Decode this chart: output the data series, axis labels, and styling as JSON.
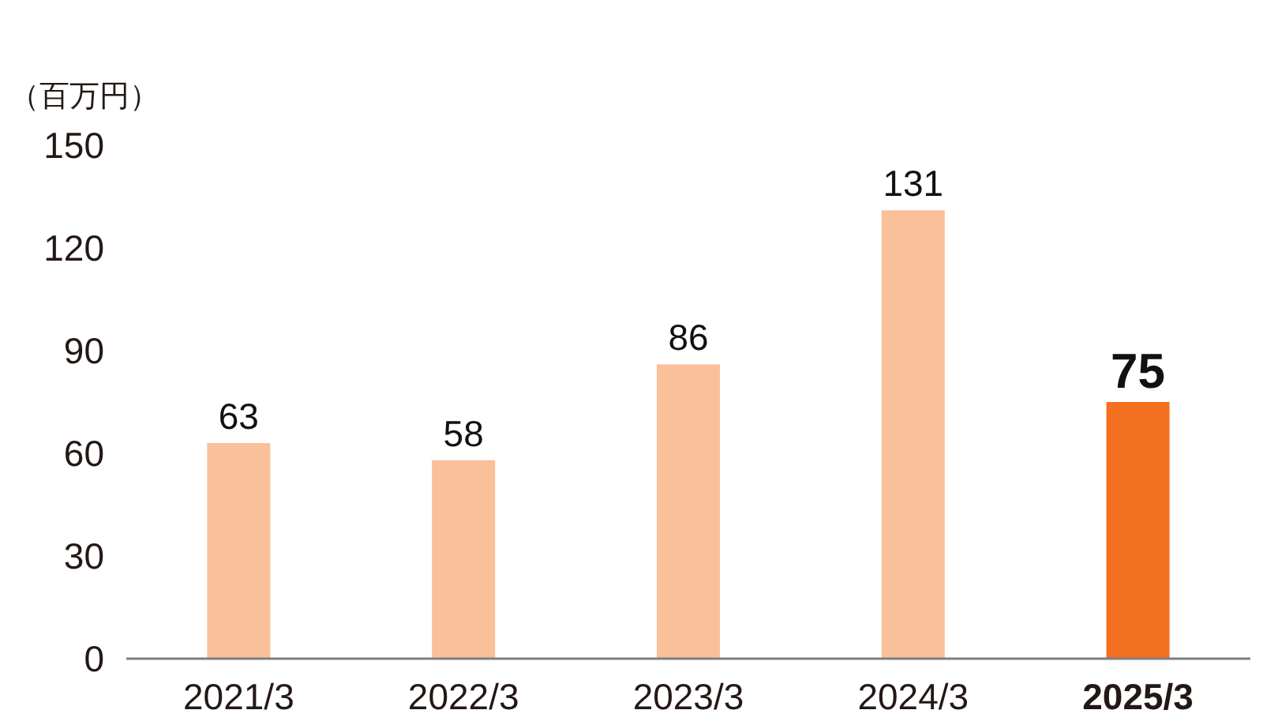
{
  "chart_data": {
    "type": "bar",
    "ylabel": "（百万円）",
    "categories": [
      "2021/3",
      "2022/3",
      "2023/3",
      "2024/3",
      "2025/3"
    ],
    "values": [
      63,
      58,
      86,
      131,
      75
    ],
    "colors": [
      "#f9c09a",
      "#f9c09a",
      "#f9c09a",
      "#f9c09a",
      "#f37021"
    ],
    "ylim": [
      0,
      150
    ],
    "yticks": [
      0,
      30,
      60,
      90,
      120,
      150
    ],
    "data_labels": true
  }
}
